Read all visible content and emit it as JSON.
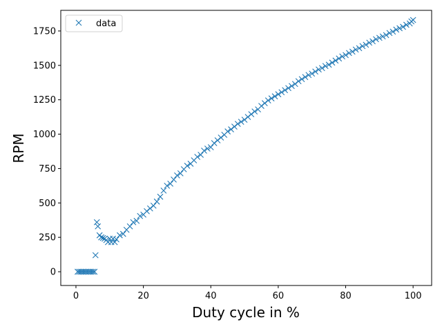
{
  "chart_data": {
    "type": "scatter",
    "xlabel": "Duty cycle in %",
    "ylabel": "RPM",
    "xlim": [
      -4.5,
      105.5
    ],
    "ylim": [
      -100,
      1900
    ],
    "xticks": [
      0,
      20,
      40,
      60,
      80,
      100
    ],
    "yticks": [
      0,
      250,
      500,
      750,
      1000,
      1250,
      1500,
      1750
    ],
    "grid": false,
    "legend": {
      "position": "top-left",
      "entries": [
        "data"
      ]
    },
    "marker": "x",
    "color": "#1f77b4",
    "series": [
      {
        "name": "data",
        "points": [
          [
            0.5,
            0
          ],
          [
            1,
            0
          ],
          [
            1.5,
            0
          ],
          [
            2,
            0
          ],
          [
            2.5,
            0
          ],
          [
            3,
            0
          ],
          [
            3.5,
            0
          ],
          [
            4,
            0
          ],
          [
            4.5,
            0
          ],
          [
            5,
            0
          ],
          [
            5.5,
            0
          ],
          [
            5.8,
            120
          ],
          [
            6.2,
            360
          ],
          [
            6.5,
            330
          ],
          [
            7,
            265
          ],
          [
            7.5,
            250
          ],
          [
            8,
            245
          ],
          [
            8.5,
            240
          ],
          [
            9,
            230
          ],
          [
            9.5,
            215
          ],
          [
            10,
            240
          ],
          [
            10.5,
            215
          ],
          [
            11,
            240
          ],
          [
            11.5,
            215
          ],
          [
            12,
            235
          ],
          [
            13,
            265
          ],
          [
            14,
            275
          ],
          [
            15,
            305
          ],
          [
            16,
            330
          ],
          [
            17,
            360
          ],
          [
            18,
            370
          ],
          [
            19,
            405
          ],
          [
            20,
            415
          ],
          [
            21,
            440
          ],
          [
            22,
            460
          ],
          [
            23,
            480
          ],
          [
            24,
            510
          ],
          [
            25,
            545
          ],
          [
            26,
            590
          ],
          [
            27,
            625
          ],
          [
            28,
            640
          ],
          [
            29,
            670
          ],
          [
            30,
            700
          ],
          [
            31,
            715
          ],
          [
            32,
            745
          ],
          [
            33,
            770
          ],
          [
            34,
            785
          ],
          [
            35,
            810
          ],
          [
            36,
            835
          ],
          [
            37,
            850
          ],
          [
            38,
            880
          ],
          [
            39,
            895
          ],
          [
            40,
            905
          ],
          [
            41,
            935
          ],
          [
            42,
            955
          ],
          [
            43,
            975
          ],
          [
            44,
            995
          ],
          [
            45,
            1020
          ],
          [
            46,
            1035
          ],
          [
            47,
            1055
          ],
          [
            48,
            1075
          ],
          [
            49,
            1090
          ],
          [
            50,
            1105
          ],
          [
            51,
            1125
          ],
          [
            52,
            1145
          ],
          [
            53,
            1165
          ],
          [
            54,
            1180
          ],
          [
            55,
            1205
          ],
          [
            56,
            1225
          ],
          [
            57,
            1245
          ],
          [
            58,
            1260
          ],
          [
            59,
            1275
          ],
          [
            60,
            1290
          ],
          [
            61,
            1305
          ],
          [
            62,
            1320
          ],
          [
            63,
            1335
          ],
          [
            64,
            1350
          ],
          [
            65,
            1365
          ],
          [
            66,
            1385
          ],
          [
            67,
            1400
          ],
          [
            68,
            1415
          ],
          [
            69,
            1430
          ],
          [
            70,
            1440
          ],
          [
            71,
            1455
          ],
          [
            72,
            1470
          ],
          [
            73,
            1480
          ],
          [
            74,
            1495
          ],
          [
            75,
            1505
          ],
          [
            76,
            1520
          ],
          [
            77,
            1535
          ],
          [
            78,
            1550
          ],
          [
            79,
            1565
          ],
          [
            80,
            1575
          ],
          [
            81,
            1590
          ],
          [
            82,
            1600
          ],
          [
            83,
            1615
          ],
          [
            84,
            1625
          ],
          [
            85,
            1640
          ],
          [
            86,
            1650
          ],
          [
            87,
            1665
          ],
          [
            88,
            1675
          ],
          [
            89,
            1690
          ],
          [
            90,
            1700
          ],
          [
            91,
            1710
          ],
          [
            92,
            1720
          ],
          [
            93,
            1735
          ],
          [
            94,
            1745
          ],
          [
            95,
            1760
          ],
          [
            96,
            1770
          ],
          [
            97,
            1780
          ],
          [
            98,
            1795
          ],
          [
            99,
            1805
          ],
          [
            99.5,
            1820
          ],
          [
            100,
            1830
          ]
        ]
      }
    ]
  }
}
